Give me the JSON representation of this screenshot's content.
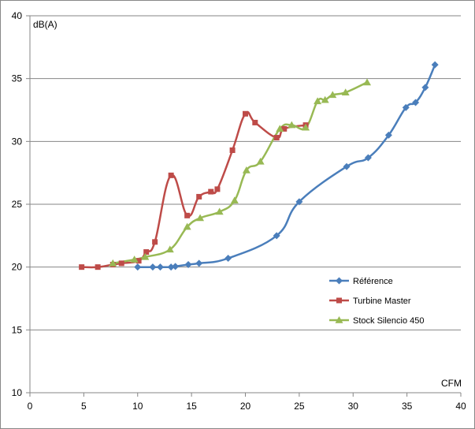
{
  "chart_data": {
    "type": "line",
    "title": "",
    "xlabel": "CFM",
    "ylabel": "dB(A)",
    "xlim": [
      0,
      40
    ],
    "ylim": [
      10,
      40
    ],
    "xticks": [
      0,
      5,
      10,
      15,
      20,
      25,
      30,
      35,
      40
    ],
    "yticks": [
      10,
      15,
      20,
      25,
      30,
      35,
      40
    ],
    "grid": "horizontal",
    "legend_position": "right",
    "series": [
      {
        "name": "Référence",
        "color": "#4a7ebb",
        "marker": "diamond",
        "x": [
          10.0,
          11.4,
          12.1,
          13.1,
          13.5,
          14.7,
          15.7,
          18.4,
          22.9,
          25.0,
          29.4,
          31.4,
          33.3,
          34.9,
          35.8,
          36.7,
          37.6
        ],
        "y": [
          20.0,
          20.0,
          20.0,
          20.0,
          20.05,
          20.2,
          20.3,
          20.7,
          22.5,
          25.2,
          28.0,
          28.7,
          30.5,
          32.7,
          33.1,
          34.3,
          36.1
        ]
      },
      {
        "name": "Turbine Master",
        "color": "#be4b48",
        "marker": "square",
        "x": [
          4.8,
          6.3,
          7.7,
          8.5,
          10.1,
          10.8,
          11.6,
          13.1,
          14.6,
          15.7,
          16.8,
          17.4,
          18.8,
          20.0,
          20.9,
          22.9,
          23.6,
          25.6
        ],
        "y": [
          20.0,
          20.0,
          20.2,
          20.3,
          20.5,
          21.2,
          22.0,
          27.3,
          24.1,
          25.6,
          26.0,
          26.2,
          29.3,
          32.2,
          31.5,
          30.3,
          31.0,
          31.3
        ]
      },
      {
        "name": "Stock Silencio 450",
        "color": "#98b954",
        "marker": "triangle",
        "x": [
          7.7,
          9.7,
          10.7,
          13.0,
          14.6,
          15.8,
          17.6,
          19.0,
          20.1,
          21.4,
          23.2,
          24.3,
          25.6,
          26.7,
          27.4,
          28.1,
          29.3,
          31.3
        ],
        "y": [
          20.3,
          20.6,
          20.8,
          21.4,
          23.2,
          23.9,
          24.4,
          25.3,
          27.7,
          28.4,
          31.0,
          31.3,
          31.1,
          33.2,
          33.3,
          33.7,
          33.9,
          34.7
        ]
      }
    ]
  }
}
